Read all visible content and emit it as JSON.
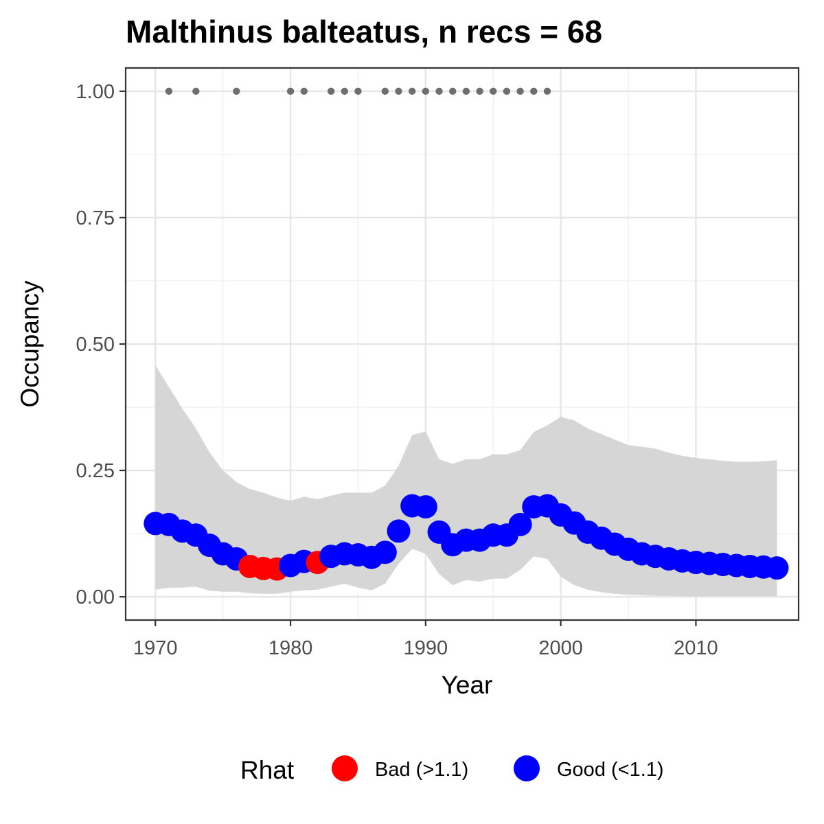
{
  "chart_data": {
    "type": "line",
    "title": "Malthinus balteatus, n recs = 68",
    "xlabel": "Year",
    "ylabel": "Occupancy",
    "xlim": [
      1967.8,
      2017.6
    ],
    "ylim": [
      -0.046,
      1.046
    ],
    "x_ticks": [
      1970,
      1980,
      1990,
      2000,
      2010
    ],
    "x_tick_labels": [
      "1970",
      "1980",
      "1990",
      "2000",
      "2010"
    ],
    "y_ticks": [
      0,
      0.25,
      0.5,
      0.75,
      1.0
    ],
    "y_tick_labels": [
      "0.00",
      "0.25",
      "0.50",
      "0.75",
      "1.00"
    ],
    "grid": true,
    "legend": {
      "title": "Rhat",
      "position": "bottom",
      "items": [
        {
          "label": "Bad (>1.1)",
          "color": "#ff0000"
        },
        {
          "label": "Good (<1.1)",
          "color": "#0000ff"
        }
      ]
    },
    "colors": {
      "bad": "#ff0000",
      "good": "#0000ff",
      "ribbon": "#d6d6d6",
      "records": "#6e6e6e"
    },
    "series": [
      {
        "years": [
          1970,
          1971,
          1972,
          1973,
          1974,
          1975,
          1976,
          1977,
          1978,
          1979,
          1980,
          1981,
          1982,
          1983,
          1984,
          1985,
          1986,
          1987,
          1988,
          1989,
          1990,
          1991,
          1992,
          1993,
          1994,
          1995,
          1996,
          1997,
          1998,
          1999,
          2000,
          2001,
          2002,
          2003,
          2004,
          2005,
          2006,
          2007,
          2008,
          2009,
          2010,
          2011,
          2012,
          2013,
          2014,
          2015,
          2016
        ],
        "mean": [
          0.145,
          0.143,
          0.13,
          0.122,
          0.102,
          0.085,
          0.075,
          0.06,
          0.056,
          0.055,
          0.062,
          0.07,
          0.068,
          0.08,
          0.085,
          0.083,
          0.078,
          0.088,
          0.13,
          0.18,
          0.178,
          0.128,
          0.103,
          0.112,
          0.112,
          0.122,
          0.122,
          0.143,
          0.178,
          0.18,
          0.162,
          0.146,
          0.128,
          0.116,
          0.104,
          0.094,
          0.085,
          0.08,
          0.075,
          0.071,
          0.068,
          0.066,
          0.064,
          0.062,
          0.06,
          0.059,
          0.057
        ],
        "lower": [
          0.014,
          0.018,
          0.018,
          0.02,
          0.012,
          0.01,
          0.01,
          0.007,
          0.006,
          0.006,
          0.01,
          0.013,
          0.014,
          0.02,
          0.026,
          0.018,
          0.013,
          0.026,
          0.065,
          0.095,
          0.085,
          0.045,
          0.023,
          0.033,
          0.03,
          0.036,
          0.036,
          0.053,
          0.08,
          0.075,
          0.04,
          0.023,
          0.014,
          0.009,
          0.006,
          0.004,
          0.003,
          0.002,
          0.002,
          0.001,
          0.001,
          0.001,
          0.001,
          0.001,
          0.001,
          0.001,
          0.001
        ],
        "upper": [
          0.458,
          0.415,
          0.372,
          0.333,
          0.286,
          0.25,
          0.227,
          0.213,
          0.206,
          0.196,
          0.19,
          0.198,
          0.193,
          0.2,
          0.206,
          0.206,
          0.206,
          0.22,
          0.259,
          0.32,
          0.327,
          0.272,
          0.263,
          0.272,
          0.272,
          0.282,
          0.282,
          0.29,
          0.326,
          0.339,
          0.356,
          0.349,
          0.333,
          0.322,
          0.311,
          0.3,
          0.297,
          0.293,
          0.285,
          0.279,
          0.275,
          0.272,
          0.269,
          0.267,
          0.267,
          0.268,
          0.27
        ],
        "rhat": [
          "good",
          "good",
          "good",
          "good",
          "good",
          "good",
          "good",
          "bad",
          "bad",
          "bad",
          "good",
          "good",
          "bad",
          "good",
          "good",
          "good",
          "good",
          "good",
          "good",
          "good",
          "good",
          "good",
          "good",
          "good",
          "good",
          "good",
          "good",
          "good",
          "good",
          "good",
          "good",
          "good",
          "good",
          "good",
          "good",
          "good",
          "good",
          "good",
          "good",
          "good",
          "good",
          "good",
          "good",
          "good",
          "good",
          "good",
          "good"
        ]
      }
    ],
    "records": {
      "years": [
        1971,
        1973,
        1976,
        1980,
        1981,
        1983,
        1984,
        1985,
        1987,
        1988,
        1989,
        1990,
        1991,
        1992,
        1993,
        1994,
        1995,
        1996,
        1997,
        1998,
        1999
      ],
      "value": 1.0
    }
  }
}
